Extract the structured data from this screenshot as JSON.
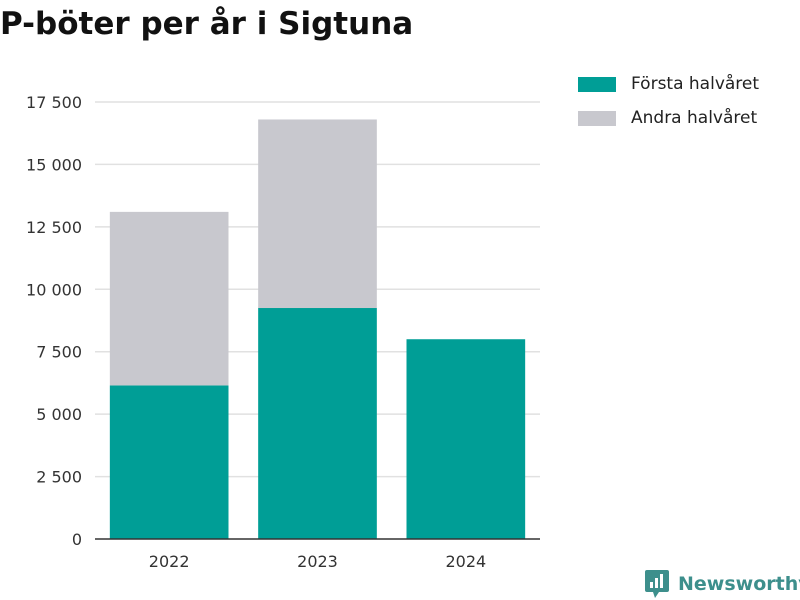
{
  "brand": {
    "name": "Newsworthy",
    "color": "#3d8f8c"
  },
  "chart_data": {
    "type": "bar",
    "stacked": true,
    "title": "P-böter per år i Sigtuna",
    "categories": [
      "2022",
      "2023",
      "2024"
    ],
    "series": [
      {
        "name": "Första halvåret",
        "color": "#009e96",
        "values": [
          6150,
          9250,
          8000
        ]
      },
      {
        "name": "Andra halvåret",
        "color": "#c8c8ce",
        "values": [
          6950,
          7550,
          null
        ]
      }
    ],
    "ylim": [
      0,
      17500
    ],
    "yticks": [
      0,
      2500,
      5000,
      7500,
      10000,
      12500,
      15000,
      17500
    ],
    "ytick_labels": [
      "0",
      "2 500",
      "5 000",
      "7 500",
      "10 000",
      "12 500",
      "15 000",
      "17 500"
    ],
    "xlabel": "",
    "ylabel": "",
    "grid": true,
    "legend_position": "top-right"
  }
}
